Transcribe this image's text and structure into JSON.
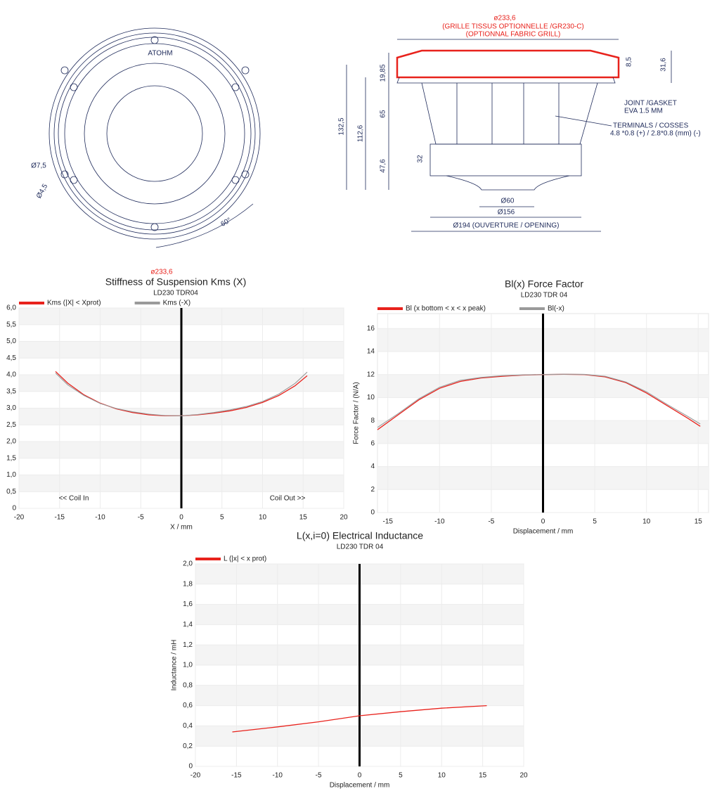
{
  "drawing": {
    "logo": "ATOHM",
    "hole_large": "Ø7,5",
    "hole_small": "Ø4,5",
    "angle": "60°",
    "grill_diameter": "ø233,6",
    "grill_note_fr": "(GRILLE TISSUS OPTIONNELLE /GR230-C)",
    "grill_note_en": "(OPTIONNAL FABRIC GRILL)",
    "dim_flange": "19,85",
    "dim_basket": "65",
    "dim_motor": "47,6",
    "dim_magnet": "32",
    "dim_total": "132,5",
    "dim_mount": "112,6",
    "dim_grill_top": "8,5",
    "dim_grill_height": "31,6",
    "gasket_1": "JOINT /GASKET",
    "gasket_2": "EVA 1.5 MM",
    "terminals_1": "TERMINALS / COSSES",
    "terminals_2": "4.8 *0.8 (+) /  2.8*0.8 (mm) (-)",
    "dim_pole": "Ø60",
    "dim_magnet_d": "Ø156",
    "dim_opening": "Ø194 (OUVERTURE / OPENING)",
    "stray_label": "ø233,6"
  },
  "chart_data": [
    {
      "type": "line",
      "title": "Stiffness of Suspension Kms (X)",
      "subtitle": "LD230 TDR04",
      "x_label": "X / mm",
      "annotations": [
        "<< Coil In",
        "Coil Out >>"
      ],
      "x": [
        -15.5,
        -14,
        -12,
        -10,
        -8,
        -6,
        -4,
        -2,
        0,
        2,
        4,
        6,
        8,
        10,
        12,
        14,
        15.5
      ],
      "series": [
        {
          "name": "Kms (|X| < Xprot)",
          "color": "#e8221c",
          "values": [
            4.1,
            3.75,
            3.4,
            3.15,
            2.98,
            2.87,
            2.8,
            2.77,
            2.77,
            2.8,
            2.85,
            2.92,
            3.02,
            3.17,
            3.38,
            3.67,
            3.97
          ]
        },
        {
          "name": "Kms (-X)",
          "color": "#9a9a9a",
          "values": [
            4.05,
            3.7,
            3.38,
            3.14,
            2.99,
            2.89,
            2.82,
            2.78,
            2.77,
            2.81,
            2.87,
            2.95,
            3.05,
            3.2,
            3.42,
            3.74,
            4.08
          ]
        }
      ],
      "xlim": [
        -20,
        20
      ],
      "xticks": [
        -20,
        -15,
        -10,
        -5,
        0,
        5,
        10,
        15,
        20
      ],
      "ylim": [
        0,
        6
      ],
      "yticks": [
        0,
        {
          "value": 0.5,
          "label": "0,5"
        },
        {
          "value": 1,
          "label": "1,0"
        },
        {
          "value": 1.5,
          "label": "1,5"
        },
        {
          "value": 2,
          "label": "2,0"
        },
        {
          "value": 2.5,
          "label": "2,5"
        },
        {
          "value": 3,
          "label": "3,0"
        },
        {
          "value": 3.5,
          "label": "3,5"
        },
        {
          "value": 4,
          "label": "4,0"
        },
        {
          "value": 4.5,
          "label": "4,5"
        },
        {
          "value": 5,
          "label": "5,0"
        },
        {
          "value": 5.5,
          "label": "5,5"
        },
        {
          "value": 6,
          "label": "6,0"
        }
      ],
      "grid": true,
      "zero_line": true,
      "legend": "top-left"
    },
    {
      "type": "line",
      "title": "Bl(x) Force Factor",
      "subtitle": "LD230 TDR 04",
      "x_label": "Displacement / mm",
      "y_label": "Force Factor / (N/A)",
      "x": [
        -16,
        -14,
        -12,
        -10,
        -8,
        -6,
        -4,
        -2,
        0,
        2,
        4,
        6,
        8,
        10,
        12,
        14,
        15.2
      ],
      "series": [
        {
          "name": "Bl (x bottom < x < x peak)",
          "color": "#e8221c",
          "values": [
            7.2,
            8.5,
            9.8,
            10.8,
            11.4,
            11.7,
            11.85,
            11.95,
            12,
            12.02,
            12,
            11.8,
            11.3,
            10.4,
            9.3,
            8.2,
            7.5
          ]
        },
        {
          "name": "Bl(-x)",
          "color": "#9a9a9a",
          "values": [
            7.4,
            8.6,
            9.9,
            10.9,
            11.5,
            11.75,
            11.9,
            11.97,
            12,
            12.03,
            12.02,
            11.85,
            11.35,
            10.5,
            9.4,
            8.35,
            7.7
          ]
        }
      ],
      "xlim": [
        -16,
        16
      ],
      "xticks": [
        -15,
        -10,
        -5,
        0,
        5,
        10,
        15
      ],
      "ylim": [
        0,
        17.3
      ],
      "yticks": [
        0,
        2,
        4,
        6,
        8,
        10,
        12,
        14,
        16
      ],
      "grid": true,
      "zero_line": true,
      "legend": "top-left"
    },
    {
      "type": "line",
      "title": "L(x,i=0) Electrical Inductance",
      "subtitle": "LD230 TDR 04",
      "x_label": "Displacement / mm",
      "y_label": "Inductance / mH",
      "x": [
        -15.5,
        -10,
        -5,
        0,
        5,
        10,
        15.5
      ],
      "series": [
        {
          "name": "L (|x| < x prot)",
          "color": "#e8221c",
          "values": [
            0.34,
            0.39,
            0.44,
            0.5,
            0.54,
            0.575,
            0.6
          ]
        }
      ],
      "xlim": [
        -20,
        20
      ],
      "xticks": [
        -20,
        -15,
        -10,
        -5,
        0,
        5,
        10,
        15,
        20
      ],
      "ylim": [
        0,
        2
      ],
      "yticks": [
        0,
        {
          "value": 0.2,
          "label": "0,2"
        },
        {
          "value": 0.4,
          "label": "0,4"
        },
        {
          "value": 0.6,
          "label": "0,6"
        },
        {
          "value": 0.8,
          "label": "0,8"
        },
        {
          "value": 1,
          "label": "1,0"
        },
        {
          "value": 1.2,
          "label": "1,2"
        },
        {
          "value": 1.4,
          "label": "1,4"
        },
        {
          "value": 1.6,
          "label": "1,6"
        },
        {
          "value": 1.8,
          "label": "1,8"
        },
        {
          "value": 2,
          "label": "2,0"
        }
      ],
      "grid": true,
      "zero_line": true,
      "legend": "top-left"
    }
  ]
}
